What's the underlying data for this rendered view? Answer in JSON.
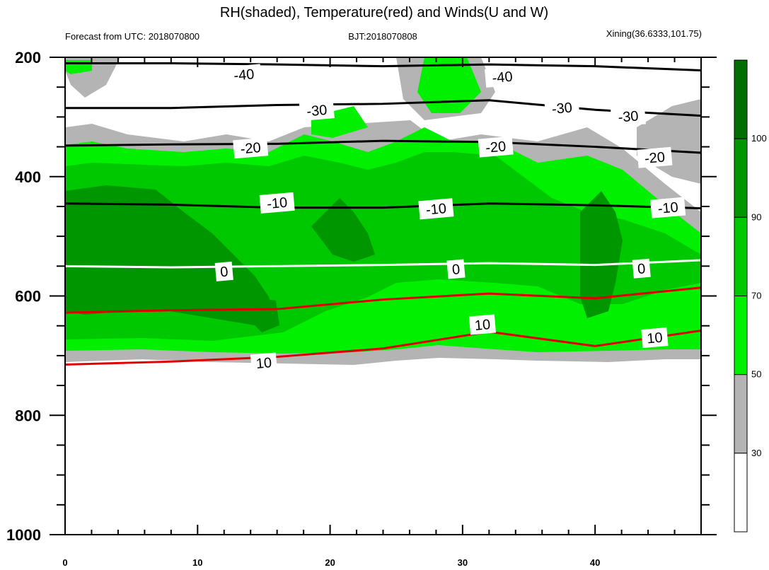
{
  "chart_data": {
    "type": "heatmap",
    "title": "RH(shaded), Temperature(red) and Winds(U and W)",
    "subtitle_left": "Forecast from UTC: 2018070800",
    "subtitle_center": "BJT:2018070808",
    "subtitle_right": "Xining(36.6333,101.75)",
    "x_ticks": [
      "0",
      "10",
      "20",
      "30",
      "40"
    ],
    "y_ticks": [
      "200",
      "400",
      "600",
      "800",
      "1000"
    ],
    "xlim": [
      0,
      48
    ],
    "ylim": [
      1000,
      200
    ],
    "colorbar": {
      "levels": [
        "30",
        "50",
        "70",
        "90",
        "100"
      ],
      "colors": [
        "#ffffff",
        "#b4b4b4",
        "#00f000",
        "#00c800",
        "#009600",
        "#006e00"
      ]
    },
    "rh_bands": [
      {
        "range": "<30",
        "color": "#ffffff"
      },
      {
        "range": "30-50",
        "color": "#b4b4b4"
      },
      {
        "range": "50-70",
        "color": "#00f000"
      },
      {
        "range": "70-90",
        "color": "#00c800"
      },
      {
        "range": "90-100",
        "color": "#009600"
      },
      {
        "range": ">100",
        "color": "#006e00"
      }
    ],
    "temperature_contours": [
      {
        "label": "-40",
        "pressure": [
          210,
          210,
          212,
          215,
          212,
          215,
          222
        ],
        "labels_at": [
          [
            13.5,
            229
          ],
          [
            33,
            233
          ]
        ]
      },
      {
        "label": "-30",
        "pressure": [
          285,
          285,
          280,
          278,
          272,
          288,
          298
        ],
        "labels_at": [
          [
            19,
            289
          ],
          [
            37.5,
            285
          ],
          [
            42.5,
            299
          ]
        ]
      },
      {
        "label": "-20",
        "pressure": [
          348,
          346,
          345,
          340,
          342,
          350,
          360
        ],
        "labels_at": [
          [
            14,
            352
          ],
          [
            32.5,
            350
          ],
          [
            44.5,
            368
          ]
        ]
      },
      {
        "label": "-10",
        "pressure": [
          445,
          447,
          452,
          452,
          445,
          448,
          453
        ],
        "labels_at": [
          [
            16,
            444
          ],
          [
            28,
            454
          ],
          [
            45.5,
            452
          ]
        ]
      },
      {
        "label": "0",
        "pressure": [
          550,
          552,
          550,
          548,
          545,
          548,
          540
        ],
        "labels_at": [
          [
            12,
            559
          ],
          [
            29.5,
            555
          ],
          [
            43.5,
            554
          ]
        ]
      },
      {
        "label": "10",
        "pressure": [
          628,
          624,
          622,
          606,
          596,
          604,
          586
        ],
        "labels_at": [
          [
            31.5,
            648
          ],
          [
            44.5,
            670
          ]
        ]
      },
      {
        "label": "10",
        "pressure": [
          715,
          710,
          702,
          688,
          660,
          684,
          658
        ],
        "labels_at": [
          [
            15,
            712
          ]
        ]
      }
    ],
    "x": [
      0,
      8,
      16,
      24,
      32,
      40,
      48
    ]
  }
}
